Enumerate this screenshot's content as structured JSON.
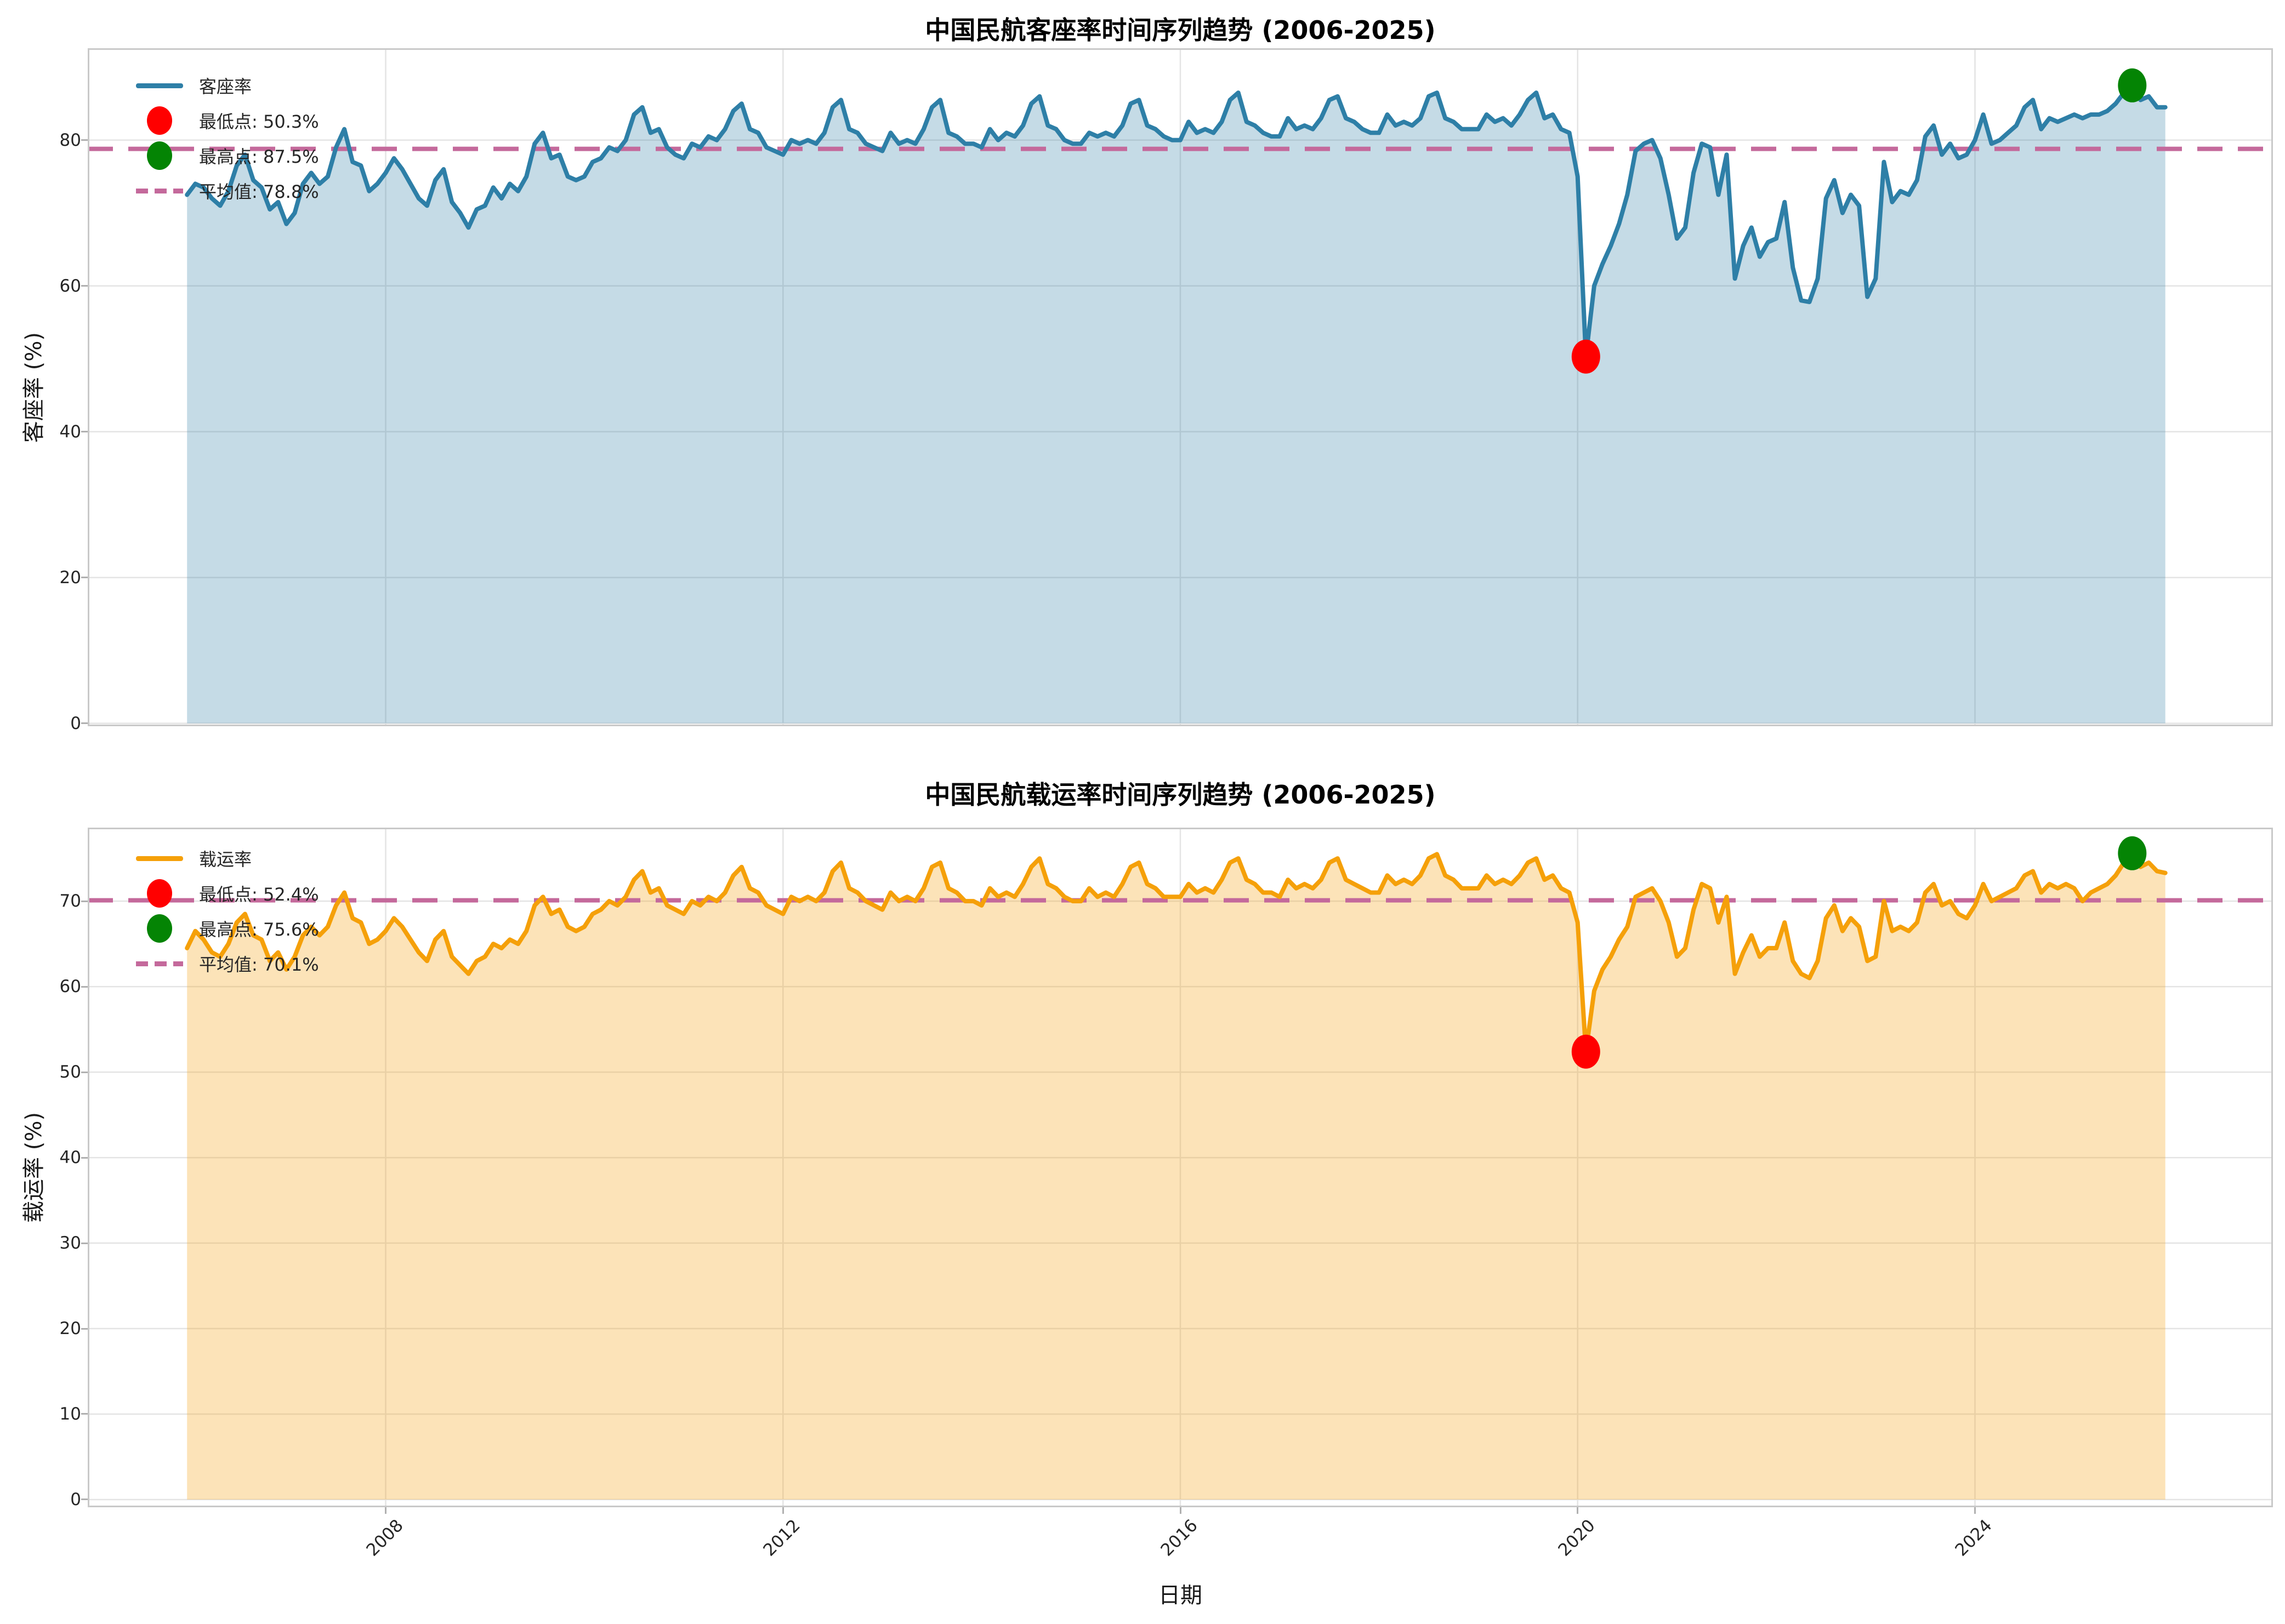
{
  "chart_data": {
    "type": "line",
    "xlabel": "日期",
    "xlim": [
      2005,
      2027
    ],
    "xticks": [
      2008,
      2012,
      2016,
      2020,
      2024
    ],
    "grid": true,
    "legend_position": "upper-left",
    "charts": [
      {
        "title": "中国民航客座率时间序列趋势 (2006-2025)",
        "ylabel": "客座率 (%)",
        "series_name": "客座率",
        "legend": {
          "series": "客座率",
          "min": "最低点: 50.3%",
          "max": "最高点: 87.5%",
          "mean": "平均值: 78.8%"
        },
        "colors": {
          "line": "#2e7fa7",
          "fill": "rgba(46,127,167,0.28)",
          "mean": "#c4699b",
          "min_marker": "#ff0000",
          "max_marker": "#048404"
        },
        "mean_value": 78.8,
        "min": {
          "x": 2020.083,
          "value": 50.3
        },
        "max": {
          "x": 2025.583,
          "value": 87.5
        },
        "ylim": [
          -0.4,
          92.6
        ],
        "yticks": [
          0,
          20,
          40,
          60,
          80
        ],
        "start_year": 2006,
        "values": [
          72.5,
          74.0,
          73.5,
          72.0,
          71.0,
          73.0,
          76.5,
          78.0,
          74.5,
          73.5,
          70.5,
          71.5,
          68.5,
          70.0,
          74.0,
          75.5,
          74.0,
          75.0,
          79.0,
          81.5,
          77.0,
          76.5,
          73.0,
          74.0,
          75.5,
          77.5,
          76.0,
          74.0,
          72.0,
          71.0,
          74.5,
          76.0,
          71.5,
          70.0,
          68.0,
          70.5,
          71.0,
          73.5,
          72.0,
          74.0,
          73.0,
          75.0,
          79.5,
          81.0,
          77.5,
          78.0,
          75.0,
          74.5,
          75.0,
          77.0,
          77.5,
          79.0,
          78.5,
          80.0,
          83.5,
          84.5,
          81.0,
          81.5,
          79.0,
          78.0,
          77.5,
          79.5,
          79.0,
          80.5,
          80.0,
          81.5,
          84.0,
          85.0,
          81.5,
          81.0,
          79.0,
          78.5,
          78.0,
          80.0,
          79.5,
          80.0,
          79.5,
          81.0,
          84.5,
          85.5,
          81.5,
          81.0,
          79.5,
          79.0,
          78.5,
          81.0,
          79.5,
          80.0,
          79.5,
          81.5,
          84.5,
          85.5,
          81.0,
          80.5,
          79.5,
          79.5,
          79.0,
          81.5,
          80.0,
          81.0,
          80.5,
          82.0,
          85.0,
          86.0,
          82.0,
          81.5,
          80.0,
          79.5,
          79.5,
          81.0,
          80.5,
          81.0,
          80.5,
          82.0,
          85.0,
          85.5,
          82.0,
          81.5,
          80.5,
          80.0,
          80.0,
          82.5,
          81.0,
          81.5,
          81.0,
          82.5,
          85.5,
          86.5,
          82.5,
          82.0,
          81.0,
          80.5,
          80.5,
          83.0,
          81.5,
          82.0,
          81.5,
          83.0,
          85.5,
          86.0,
          83.0,
          82.5,
          81.5,
          81.0,
          81.0,
          83.5,
          82.0,
          82.5,
          82.0,
          83.0,
          86.0,
          86.5,
          83.0,
          82.5,
          81.5,
          81.5,
          81.5,
          83.5,
          82.5,
          83.0,
          82.0,
          83.5,
          85.5,
          86.5,
          83.0,
          83.5,
          81.5,
          81.0,
          75.0,
          50.3,
          60.0,
          63.0,
          65.5,
          68.5,
          72.5,
          78.5,
          79.5,
          80.0,
          77.5,
          72.5,
          66.5,
          68.0,
          75.5,
          79.5,
          79.0,
          72.5,
          78.0,
          61.0,
          65.5,
          68.0,
          64.0,
          66.0,
          66.5,
          71.5,
          62.5,
          58.0,
          57.8,
          61.0,
          72.0,
          74.5,
          70.0,
          72.5,
          71.0,
          58.5,
          61.0,
          77.0,
          71.5,
          73.0,
          72.5,
          74.5,
          80.5,
          82.0,
          78.0,
          79.5,
          77.5,
          78.0,
          80.0,
          83.5,
          79.5,
          80.0,
          81.0,
          82.0,
          84.5,
          85.5,
          81.5,
          83.0,
          82.5,
          83.0,
          83.5,
          83.0,
          83.5,
          83.5,
          84.0,
          85.0,
          86.5,
          87.5,
          85.5,
          86.0,
          84.5,
          84.5
        ]
      },
      {
        "title": "中国民航载运率时间序列趋势 (2006-2025)",
        "ylabel": "载运率 (%)",
        "series_name": "载运率",
        "legend": {
          "series": "载运率",
          "min": "最低点: 52.4%",
          "max": "最高点: 75.6%",
          "mean": "平均值: 70.1%"
        },
        "colors": {
          "line": "#f5a009",
          "fill": "rgba(245,160,9,0.29)",
          "mean": "#c4699b",
          "min_marker": "#ff0000",
          "max_marker": "#048404"
        },
        "mean_value": 70.1,
        "min": {
          "x": 2020.083,
          "value": 52.4
        },
        "max": {
          "x": 2025.583,
          "value": 75.6
        },
        "ylim": [
          -0.9,
          78.6
        ],
        "yticks": [
          0,
          10,
          20,
          30,
          40,
          50,
          60,
          70
        ],
        "start_year": 2006,
        "values": [
          64.5,
          66.5,
          65.5,
          64.0,
          63.5,
          65.0,
          67.5,
          68.5,
          66.0,
          65.5,
          63.0,
          64.0,
          62.0,
          63.5,
          66.0,
          67.0,
          66.0,
          67.0,
          69.5,
          71.0,
          68.0,
          67.5,
          65.0,
          65.5,
          66.5,
          68.0,
          67.0,
          65.5,
          64.0,
          63.0,
          65.5,
          66.5,
          63.5,
          62.5,
          61.5,
          63.0,
          63.5,
          65.0,
          64.5,
          65.5,
          65.0,
          66.5,
          69.5,
          70.5,
          68.5,
          69.0,
          67.0,
          66.5,
          67.0,
          68.5,
          69.0,
          70.0,
          69.5,
          70.5,
          72.5,
          73.5,
          71.0,
          71.5,
          69.5,
          69.0,
          68.5,
          70.0,
          69.5,
          70.5,
          70.0,
          71.0,
          73.0,
          74.0,
          71.5,
          71.0,
          69.5,
          69.0,
          68.5,
          70.5,
          70.0,
          70.5,
          70.0,
          71.0,
          73.5,
          74.5,
          71.5,
          71.0,
          70.0,
          69.5,
          69.0,
          71.0,
          70.0,
          70.5,
          70.0,
          71.5,
          74.0,
          74.5,
          71.5,
          71.0,
          70.0,
          70.0,
          69.5,
          71.5,
          70.5,
          71.0,
          70.5,
          72.0,
          74.0,
          75.0,
          72.0,
          71.5,
          70.5,
          70.0,
          70.0,
          71.5,
          70.5,
          71.0,
          70.5,
          72.0,
          74.0,
          74.5,
          72.0,
          71.5,
          70.5,
          70.5,
          70.5,
          72.0,
          71.0,
          71.5,
          71.0,
          72.5,
          74.5,
          75.0,
          72.5,
          72.0,
          71.0,
          71.0,
          70.5,
          72.5,
          71.5,
          72.0,
          71.5,
          72.5,
          74.5,
          75.0,
          72.5,
          72.0,
          71.5,
          71.0,
          71.0,
          73.0,
          72.0,
          72.5,
          72.0,
          73.0,
          75.0,
          75.5,
          73.0,
          72.5,
          71.5,
          71.5,
          71.5,
          73.0,
          72.0,
          72.5,
          72.0,
          73.0,
          74.5,
          75.0,
          72.5,
          73.0,
          71.5,
          71.0,
          67.5,
          52.4,
          59.5,
          62.0,
          63.5,
          65.5,
          67.0,
          70.5,
          71.0,
          71.5,
          70.0,
          67.5,
          63.5,
          64.5,
          69.0,
          72.0,
          71.5,
          67.5,
          70.5,
          61.5,
          64.0,
          66.0,
          63.5,
          64.5,
          64.5,
          67.5,
          63.0,
          61.5,
          61.0,
          63.0,
          68.0,
          69.5,
          66.5,
          68.0,
          67.0,
          63.0,
          63.5,
          70.0,
          66.5,
          67.0,
          66.5,
          67.5,
          71.0,
          72.0,
          69.5,
          70.0,
          68.5,
          68.0,
          69.5,
          72.0,
          70.0,
          70.5,
          71.0,
          71.5,
          73.0,
          73.5,
          71.0,
          72.0,
          71.5,
          72.0,
          71.5,
          70.0,
          71.0,
          71.5,
          72.0,
          73.0,
          74.5,
          75.6,
          74.0,
          74.5,
          73.5,
          73.3
        ]
      }
    ],
    "style": {
      "grid_color": "#e4e4e4",
      "spine_color": "#c9c9c9",
      "tick_color": "#b0b0b0",
      "text_color": "#262626"
    }
  }
}
